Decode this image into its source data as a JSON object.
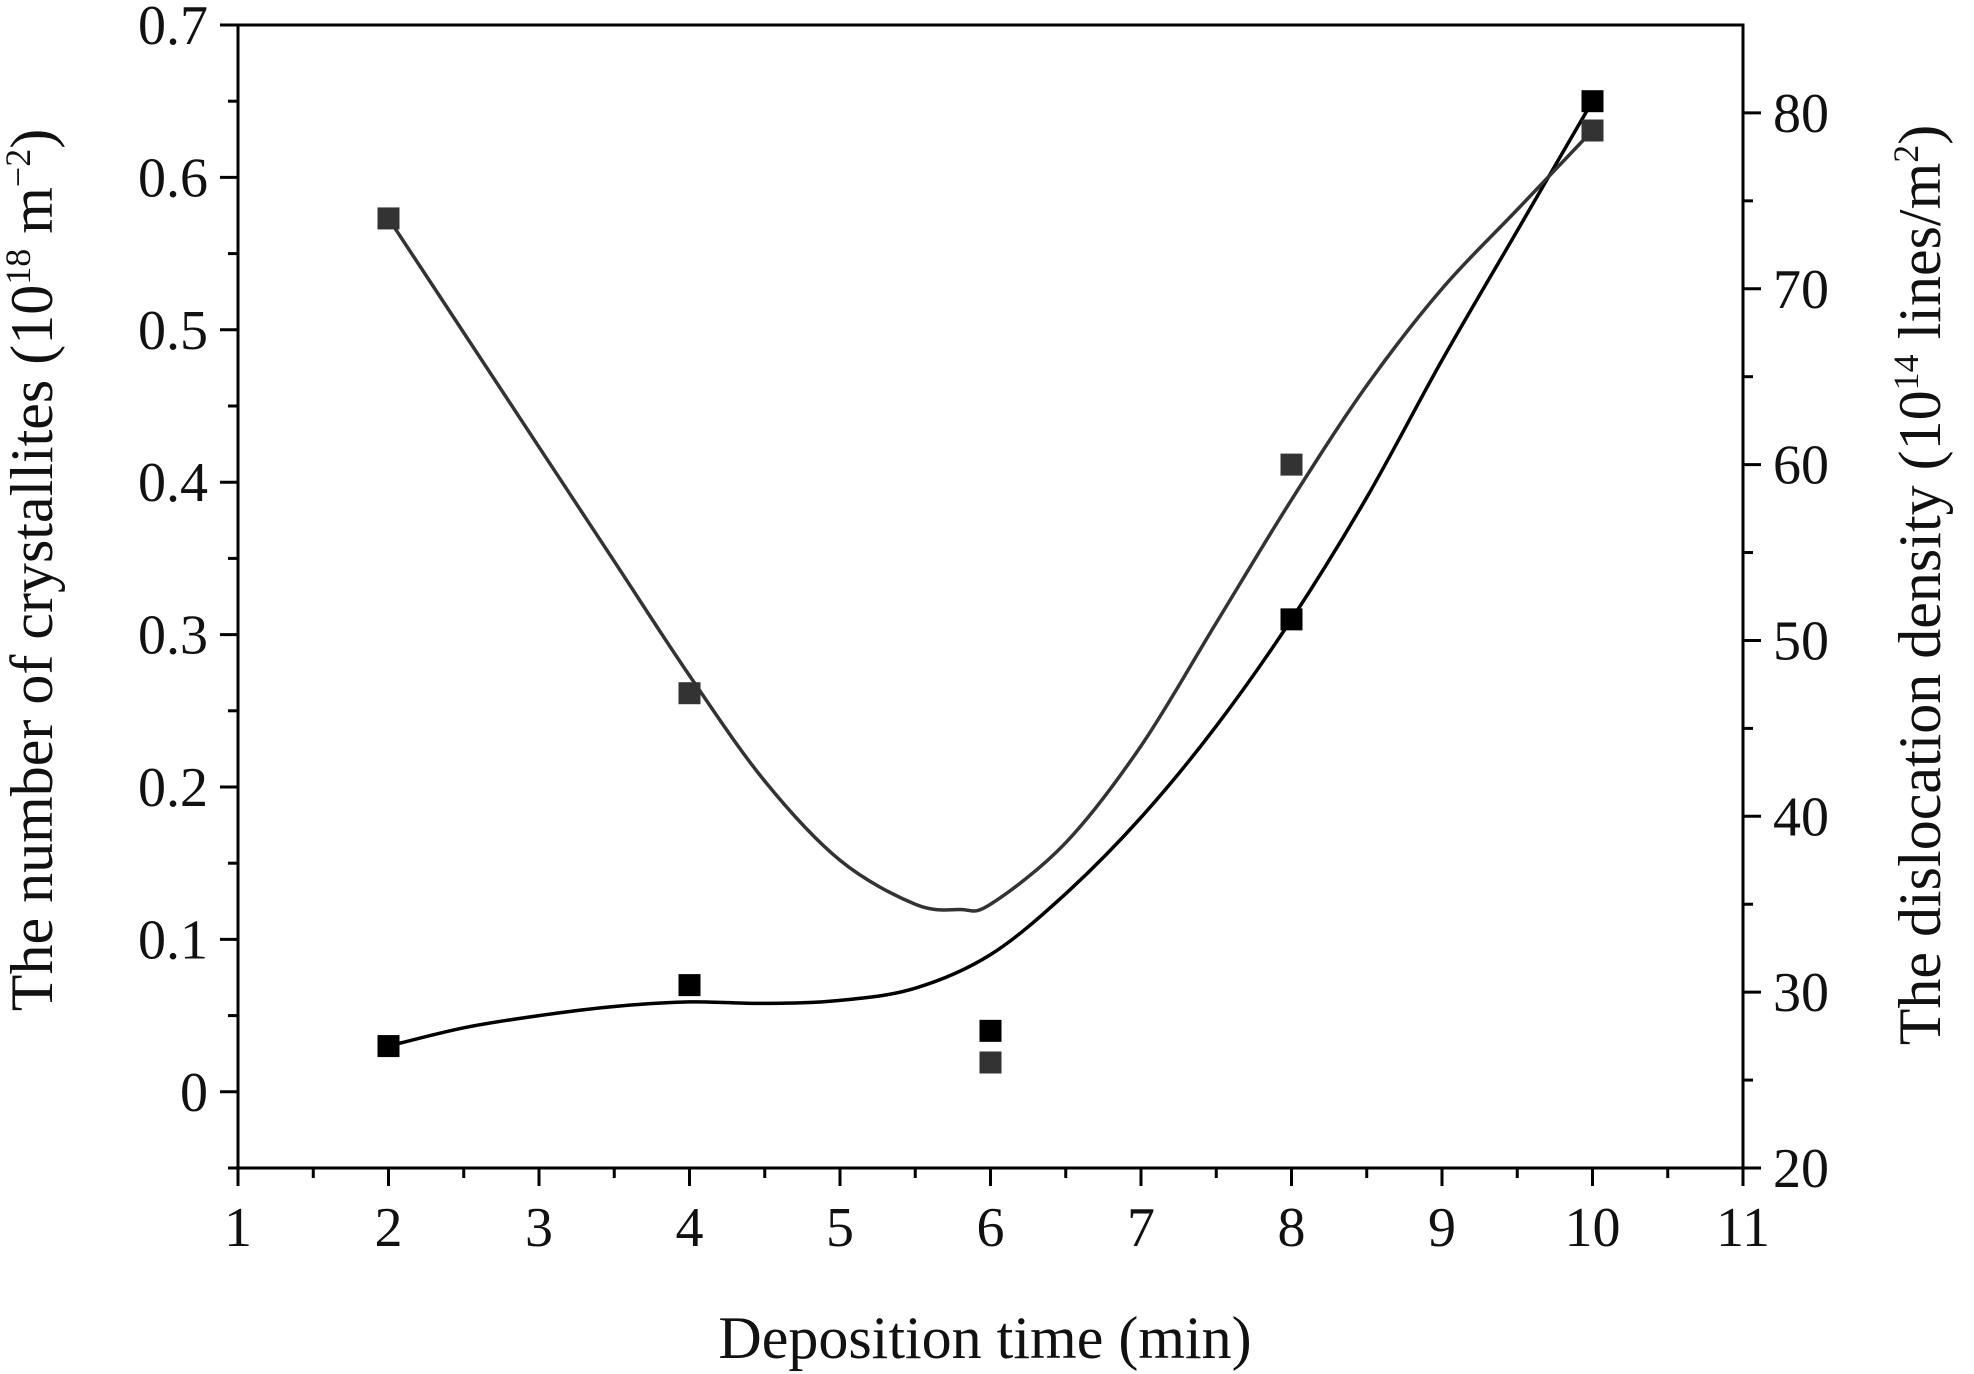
{
  "chart_data": {
    "type": "scatter",
    "xlabel": "Deposition time (min)",
    "ylabel": {
      "main": "The number of crystallites (10",
      "sup": "18",
      "mid": " m",
      "sup2": "−2",
      "end": ")"
    },
    "y2label": {
      "main": "The dislocation density (10",
      "sup": "14",
      "mid": " lines/m",
      "sup2": "2",
      "end": ")"
    },
    "xlim": [
      1,
      11
    ],
    "ylim": [
      -0.05,
      0.7
    ],
    "y2lim": [
      20,
      85
    ],
    "x_ticks": [
      1,
      2,
      3,
      4,
      5,
      6,
      7,
      8,
      9,
      10,
      11
    ],
    "y_ticks": [
      0,
      0.1,
      0.2,
      0.3,
      0.4,
      0.5,
      0.6,
      0.7
    ],
    "y_tick_labels": [
      "0",
      "0.1",
      "0.2",
      "0.3",
      "0.4",
      "0.5",
      "0.6",
      "0.7"
    ],
    "y2_ticks": [
      20,
      30,
      40,
      50,
      60,
      70,
      80
    ],
    "x_minor_ticks": [
      1.5,
      2.5,
      3.5,
      4.5,
      5.5,
      6.5,
      7.5,
      8.5,
      9.5,
      10.5
    ],
    "y_minor_ticks": [
      -0.05,
      0.05,
      0.15,
      0.25,
      0.35,
      0.45,
      0.55,
      0.65
    ],
    "y2_minor_ticks": [
      25,
      35,
      45,
      55,
      65,
      75
    ],
    "grid": false,
    "series": [
      {
        "axis": "left",
        "color": "#000000",
        "marker": "square",
        "x": [
          2,
          4,
          6,
          8,
          10
        ],
        "y": [
          0.03,
          0.07,
          0.04,
          0.31,
          0.65
        ],
        "fit_x": [
          2,
          2.5,
          3,
          3.5,
          4,
          4.5,
          5,
          5.5,
          6,
          6.5,
          7,
          7.5,
          8,
          8.5,
          9,
          9.5,
          10
        ],
        "fit_y": [
          0.03,
          0.042,
          0.05,
          0.056,
          0.059,
          0.058,
          0.06,
          0.068,
          0.09,
          0.13,
          0.18,
          0.24,
          0.31,
          0.39,
          0.48,
          0.565,
          0.65
        ]
      },
      {
        "axis": "right",
        "color": "#333333",
        "marker": "square",
        "x": [
          2,
          4,
          6,
          8,
          10
        ],
        "y": [
          74,
          47,
          26,
          60,
          79
        ],
        "fit_x": [
          2,
          2.5,
          3,
          3.5,
          4,
          4.5,
          5,
          5.5,
          5.8,
          6,
          6.5,
          7,
          7.5,
          8,
          8.5,
          9,
          9.5,
          10
        ],
        "fit_y": [
          74,
          67.5,
          61,
          54.5,
          48,
          42,
          37.5,
          35,
          34.7,
          35,
          38.5,
          44,
          51,
          58,
          64.5,
          70,
          74.5,
          79
        ]
      }
    ]
  }
}
